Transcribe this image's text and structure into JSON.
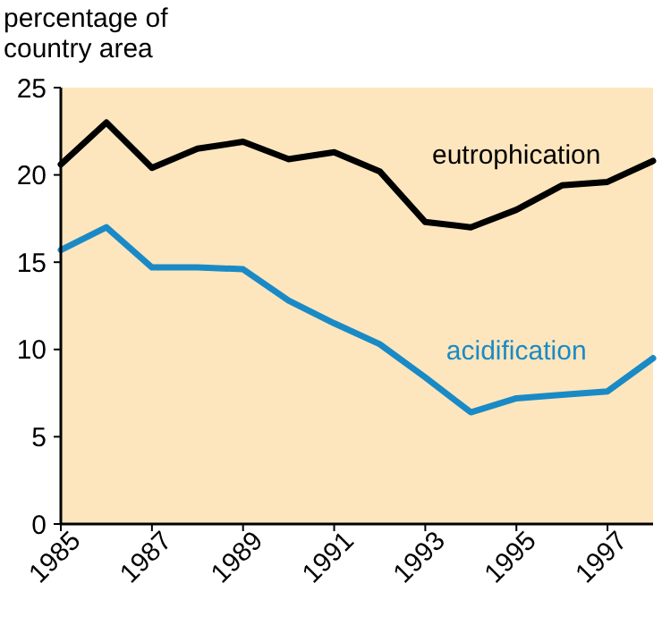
{
  "chart_data": {
    "type": "line",
    "ylabel": "percentage of country area",
    "x": [
      1985,
      1986,
      1987,
      1988,
      1989,
      1990,
      1991,
      1992,
      1993,
      1994,
      1995,
      1996,
      1997,
      1998
    ],
    "series": [
      {
        "name": "eutrophication",
        "color": "#000000",
        "values": [
          20.6,
          23.0,
          20.4,
          21.5,
          21.9,
          20.9,
          21.3,
          20.2,
          17.3,
          17.0,
          18.0,
          19.4,
          19.6,
          20.8
        ]
      },
      {
        "name": "acidification",
        "color": "#1a8ac6",
        "values": [
          15.7,
          17.0,
          14.7,
          14.7,
          14.6,
          12.8,
          11.5,
          10.3,
          8.4,
          6.4,
          7.2,
          7.4,
          7.6,
          9.5
        ]
      }
    ],
    "xlim": [
      1985,
      1998
    ],
    "xticks": [
      1985,
      1987,
      1989,
      1991,
      1993,
      1995,
      1997
    ],
    "ylim": [
      0,
      25
    ],
    "yticks": [
      0,
      5,
      10,
      15,
      20,
      25
    ],
    "grid": false,
    "marker": "none",
    "line_style": "solid"
  }
}
